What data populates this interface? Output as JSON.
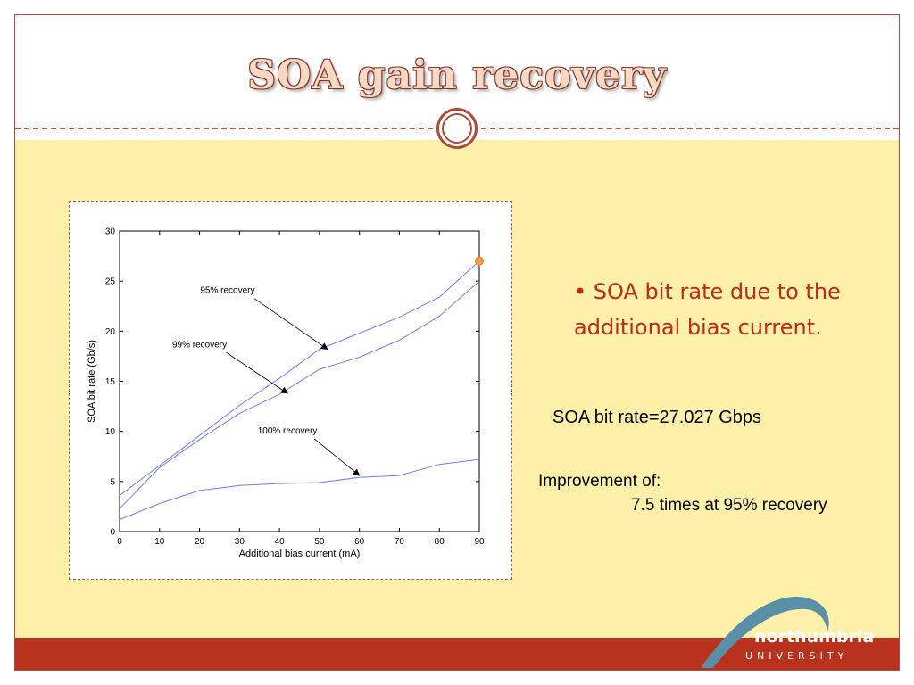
{
  "slide": {
    "title": "SOA gain recovery",
    "bullet": "SOA bit rate due to the additional bias current.",
    "bit_rate_text": "SOA bit rate=27.027 Gbps",
    "improvement_label": "Improvement of:",
    "improvement_value": "7.5 times at 95% recovery",
    "colors": {
      "border": "#b8493a",
      "content_bg": "#fdf0a8",
      "footer": "#b8321e",
      "bullet_text": "#c0281a",
      "title_fill": "#f7d9c4"
    }
  },
  "logo": {
    "name": "northumbria",
    "subtitle": "UNIVERSITY",
    "colors": {
      "swoosh": "#5a8fa8"
    }
  },
  "chart_data": {
    "type": "line",
    "xlabel": "Additional bias current (mA)",
    "ylabel": "SOA bit rate (Gb/s)",
    "xlim": [
      0,
      90
    ],
    "ylim": [
      0,
      30
    ],
    "xticks": [
      0,
      10,
      20,
      30,
      40,
      50,
      60,
      70,
      80,
      90
    ],
    "yticks": [
      0,
      5,
      10,
      15,
      20,
      25,
      30
    ],
    "grid": false,
    "x": [
      0,
      10,
      20,
      30,
      40,
      50,
      60,
      70,
      80,
      90
    ],
    "series": [
      {
        "name": "95% recovery",
        "values": [
          3.6,
          6.6,
          9.6,
          12.6,
          15.3,
          18.2,
          19.8,
          21.4,
          23.4,
          27.0
        ]
      },
      {
        "name": "99% recovery",
        "values": [
          2.3,
          6.4,
          9.2,
          11.8,
          13.7,
          16.2,
          17.4,
          19.1,
          21.5,
          25.0
        ]
      },
      {
        "name": "100% recovery",
        "values": [
          1.2,
          2.8,
          4.1,
          4.6,
          4.8,
          4.9,
          5.4,
          5.6,
          6.7,
          7.2
        ]
      }
    ],
    "highlight_point": {
      "x": 90,
      "y": 27.0
    },
    "annotations": [
      {
        "text": "95% recovery",
        "series": "95% recovery",
        "label_at": [
          27,
          23.8
        ],
        "arrow_to": [
          52,
          18.2
        ]
      },
      {
        "text": "99% recovery",
        "series": "99% recovery",
        "label_at": [
          20,
          18.4
        ],
        "arrow_to": [
          42,
          13.8
        ]
      },
      {
        "text": "100% recovery",
        "series": "100% recovery",
        "label_at": [
          42,
          9.8
        ],
        "arrow_to": [
          60,
          5.6
        ]
      }
    ],
    "colors": {
      "line": "#6b7cff",
      "highlight": "#f4a040"
    }
  }
}
